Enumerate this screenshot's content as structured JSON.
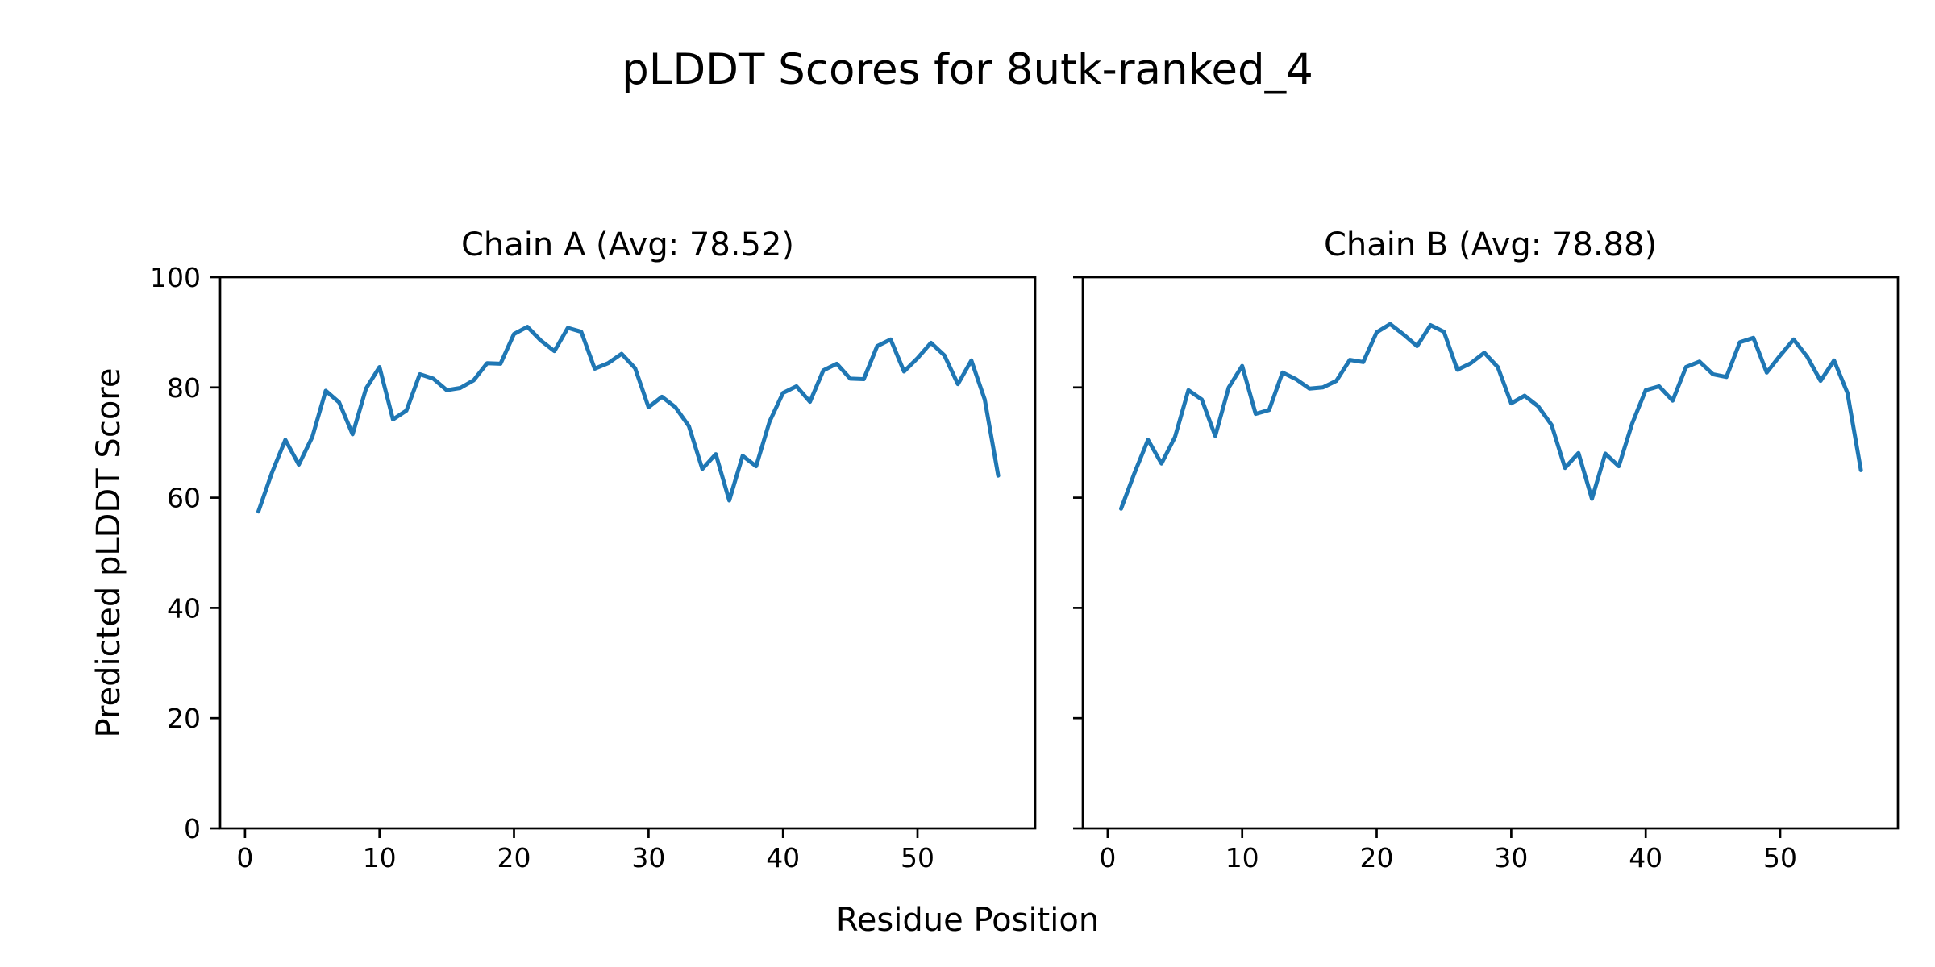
{
  "figure": {
    "title": "pLDDT Scores for 8utk-ranked_4",
    "xlabel": "Residue Position",
    "ylabel": "Predicted pLDDT Score"
  },
  "chart_data": {
    "type": "line",
    "title": "pLDDT Scores for 8utk-ranked_4",
    "xlabel": "Residue Position",
    "ylabel": "Predicted pLDDT Score",
    "line_color": "#1f77b4",
    "axis_color": "#000000",
    "background": "#ffffff",
    "grid": false,
    "legend_position": "none",
    "x_ticks": [
      0,
      10,
      20,
      30,
      40,
      50
    ],
    "y_ticks": [
      0,
      20,
      40,
      60,
      80,
      100
    ],
    "xlim": [
      -1.85,
      58.75
    ],
    "ylim": [
      0,
      100
    ],
    "x_start_residue": 1,
    "n_residues": 56,
    "subplots": [
      {
        "name": "Chain A",
        "title": "Chain A (Avg: 78.52)",
        "avg": 78.52,
        "values": [
          57.5,
          64.5,
          70.5,
          66.0,
          71.0,
          79.4,
          77.3,
          71.5,
          79.8,
          83.7,
          74.2,
          75.8,
          82.4,
          81.6,
          79.5,
          79.9,
          81.3,
          84.4,
          84.3,
          89.7,
          91.0,
          88.5,
          86.6,
          90.8,
          90.1,
          83.4,
          84.4,
          86.1,
          83.5,
          76.4,
          78.3,
          76.4,
          73.0,
          65.2,
          67.9,
          59.5,
          67.6,
          65.7,
          73.8,
          79.0,
          80.2,
          77.4,
          83.1,
          84.3,
          81.6,
          81.5,
          87.5,
          88.7,
          82.9,
          85.3,
          88.1,
          85.8,
          80.6,
          84.9,
          77.8,
          64.0
        ]
      },
      {
        "name": "Chain B",
        "title": "Chain B (Avg: 78.88)",
        "avg": 78.88,
        "values": [
          58.0,
          64.5,
          70.5,
          66.2,
          71.0,
          79.5,
          77.8,
          71.2,
          80.0,
          83.9,
          75.2,
          75.9,
          82.7,
          81.5,
          79.8,
          80.0,
          81.2,
          85.0,
          84.6,
          90.0,
          91.5,
          89.6,
          87.5,
          91.3,
          90.1,
          83.2,
          84.4,
          86.3,
          83.7,
          77.1,
          78.5,
          76.6,
          73.2,
          65.4,
          68.1,
          59.8,
          68.0,
          65.7,
          73.5,
          79.5,
          80.2,
          77.6,
          83.7,
          84.7,
          82.4,
          81.9,
          88.2,
          89.0,
          82.7,
          85.8,
          88.7,
          85.6,
          81.2,
          84.9,
          79.0,
          65.0
        ]
      }
    ]
  }
}
